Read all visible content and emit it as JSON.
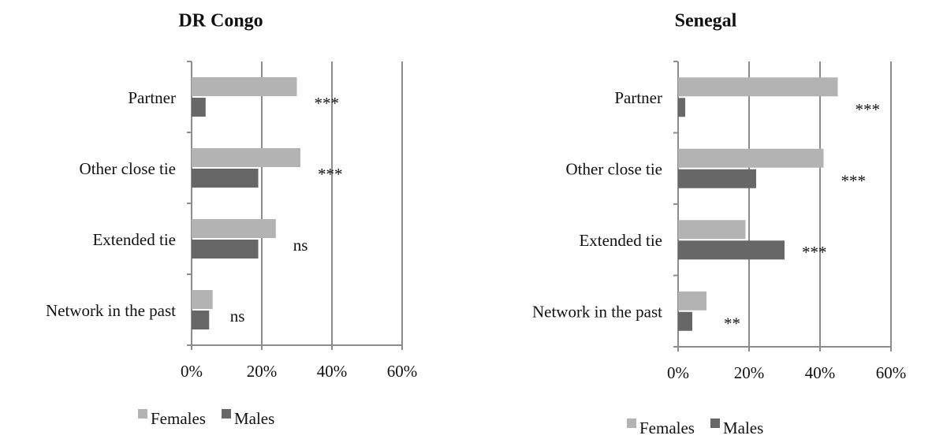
{
  "chart_data": [
    {
      "type": "bar",
      "orientation": "horizontal",
      "title": "DR Congo",
      "categories": [
        "Partner",
        "Other close tie",
        "Extended tie",
        "Network in the past"
      ],
      "series": [
        {
          "name": "Females",
          "color": "#b3b3b3",
          "values": [
            30,
            31,
            24,
            6
          ]
        },
        {
          "name": "Males",
          "color": "#676767",
          "values": [
            4,
            19,
            19,
            5
          ]
        }
      ],
      "annotations": [
        "***",
        "***",
        "ns",
        "ns"
      ],
      "xlim": [
        0,
        60
      ],
      "xticks": [
        {
          "value": 0,
          "label": "0%"
        },
        {
          "value": 20,
          "label": "20%"
        },
        {
          "value": 40,
          "label": "40%"
        },
        {
          "value": 60,
          "label": "60%"
        }
      ],
      "grid": true,
      "legend": "bottom"
    },
    {
      "type": "bar",
      "orientation": "horizontal",
      "title": "Senegal",
      "categories": [
        "Partner",
        "Other close tie",
        "Extended tie",
        "Network in the past"
      ],
      "series": [
        {
          "name": "Females",
          "color": "#b3b3b3",
          "values": [
            45,
            41,
            19,
            8
          ]
        },
        {
          "name": "Males",
          "color": "#676767",
          "values": [
            2,
            22,
            30,
            4
          ]
        }
      ],
      "annotations": [
        "***",
        "***",
        "***",
        "**"
      ],
      "xlim": [
        0,
        60
      ],
      "xticks": [
        {
          "value": 0,
          "label": "0%"
        },
        {
          "value": 20,
          "label": "20%"
        },
        {
          "value": 40,
          "label": "40%"
        },
        {
          "value": 60,
          "label": "60%"
        }
      ],
      "grid": true,
      "legend": "bottom"
    }
  ]
}
